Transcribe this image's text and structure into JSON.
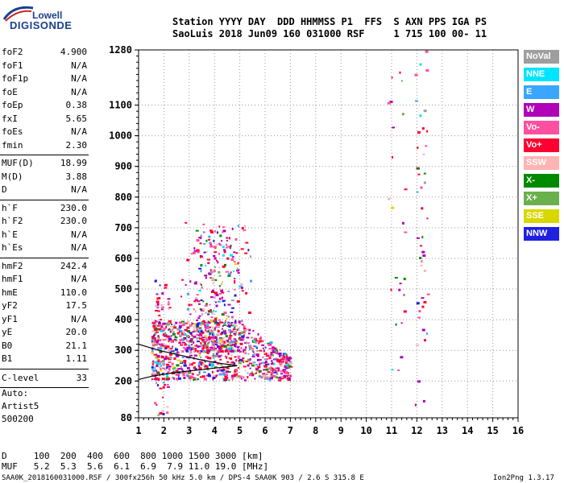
{
  "logo": {
    "line1": "Lowell",
    "line2": "DIGISONDE"
  },
  "header": {
    "row1": "Station YYYY DAY  DDD HHMMSS P1  FFS  S AXN PPS IGA PS",
    "row2": "SaoLuis 2018 Jun09 160 031000 RSF     1 715 100 00- 11"
  },
  "params": {
    "group1": [
      {
        "name": "foF2",
        "value": "4.900"
      },
      {
        "name": "foF1",
        "value": "N/A"
      },
      {
        "name": "foF1p",
        "value": "N/A"
      },
      {
        "name": "foE",
        "value": "N/A"
      },
      {
        "name": "foEp",
        "value": "0.38"
      },
      {
        "name": "fxI",
        "value": "5.65"
      },
      {
        "name": "foEs",
        "value": "N/A"
      },
      {
        "name": "fmin",
        "value": "2.30"
      }
    ],
    "group2": [
      {
        "name": "MUF(D)",
        "value": "18.99"
      },
      {
        "name": "M(D)",
        "value": "3.88"
      },
      {
        "name": "D",
        "value": "N/A"
      }
    ],
    "group3": [
      {
        "name": "h`F",
        "value": "230.0"
      },
      {
        "name": "h`F2",
        "value": "230.0"
      },
      {
        "name": "h`E",
        "value": "N/A"
      },
      {
        "name": "h`Es",
        "value": "N/A"
      }
    ],
    "group4": [
      {
        "name": "hmF2",
        "value": "242.4"
      },
      {
        "name": "hmF1",
        "value": "N/A"
      },
      {
        "name": "hmE",
        "value": "110.0"
      },
      {
        "name": "yF2",
        "value": "17.5"
      },
      {
        "name": "yF1",
        "value": "N/A"
      },
      {
        "name": "yE",
        "value": "20.0"
      },
      {
        "name": "B0",
        "value": "21.1"
      },
      {
        "name": "B1",
        "value": "1.11"
      }
    ],
    "clevel": {
      "name": "C-level",
      "value": "33"
    }
  },
  "auto": {
    "line1": "Auto:",
    "line2": "Artist5",
    "line3": "500200"
  },
  "legend": [
    {
      "label": "NoVal",
      "color": "#9e9e9e"
    },
    {
      "label": "NNE",
      "color": "#00e5ff"
    },
    {
      "label": "E",
      "color": "#3aa6ff"
    },
    {
      "label": "W",
      "color": "#b000b8"
    },
    {
      "label": "Vo-",
      "color": "#ff4fa0"
    },
    {
      "label": "Vo+",
      "color": "#ff0030"
    },
    {
      "label": "SSW",
      "color": "#ffb3b3"
    },
    {
      "label": "X-",
      "color": "#008a00"
    },
    {
      "label": "X+",
      "color": "#6ab04c"
    },
    {
      "label": "SSE",
      "color": "#d8d800"
    },
    {
      "label": "NNW",
      "color": "#2020e0"
    }
  ],
  "footer": {
    "dist_row": "D     100  200  400  600  800 1000 1500 3000 [km]",
    "muf_row": "MUF   5.2  5.3  5.6  6.1  6.9  7.9 11.0 19.0 [MHz]",
    "file_line": "SAA0K_2018160031000.RSF / 300fx256h 50 kHz 5.0 km / DPS-4 SAA0K 903 / 2.6 S 315.8 E",
    "version": "Ion2Png 1.3.17"
  },
  "chart_data": {
    "type": "scatter",
    "title": "",
    "xlabel": "",
    "ylabel": "",
    "x_unit": "MHz",
    "y_unit": "km",
    "xlim": [
      1,
      16
    ],
    "ylim": [
      80,
      1280
    ],
    "x_ticks": [
      "1",
      "2",
      "3",
      "4",
      "5",
      "6",
      "7",
      "8",
      "9",
      "10",
      "11",
      "12",
      "13",
      "14",
      "15",
      "16"
    ],
    "y_ticks": [
      "80",
      "200",
      "300",
      "400",
      "500",
      "600",
      "700",
      "800",
      "900",
      "1000",
      "1100",
      "1280"
    ],
    "y_tick_values": [
      80,
      200,
      300,
      400,
      500,
      600,
      700,
      800,
      900,
      1000,
      1100,
      1280
    ],
    "grid": true,
    "legend_position": "right",
    "trace": {
      "name": "",
      "color": "#000000",
      "x": [
        1.0,
        1.5,
        2.0,
        2.5,
        3.0,
        3.5,
        4.0,
        4.5,
        4.9
      ],
      "y": [
        205,
        215,
        222,
        228,
        233,
        237,
        242,
        246,
        250
      ]
    },
    "profile": {
      "name": "",
      "color": "#000000",
      "x": [
        1.0,
        1.8,
        2.6,
        3.4,
        4.2,
        4.9
      ],
      "y": [
        320,
        300,
        285,
        270,
        258,
        250
      ]
    },
    "clusters": [
      {
        "name": "F-layer echoes",
        "x_range": [
          1.5,
          7.0
        ],
        "y_range": [
          205,
          400
        ],
        "count": 900
      },
      {
        "name": "F-layer spread",
        "x_range": [
          2.6,
          5.5
        ],
        "y_range": [
          300,
          720
        ],
        "count": 420
      },
      {
        "name": "low-frequency echoes",
        "x_range": [
          1.6,
          2.2
        ],
        "y_range": [
          90,
          540
        ],
        "count": 70
      },
      {
        "name": "sporadic echoes 12 MHz",
        "x_range": [
          11.9,
          12.4
        ],
        "y_range": [
          90,
          1280
        ],
        "count": 45
      },
      {
        "name": "sporadic echoes 11 MHz",
        "x_range": [
          10.8,
          11.5
        ],
        "y_range": [
          170,
          1230
        ],
        "count": 25
      }
    ]
  }
}
